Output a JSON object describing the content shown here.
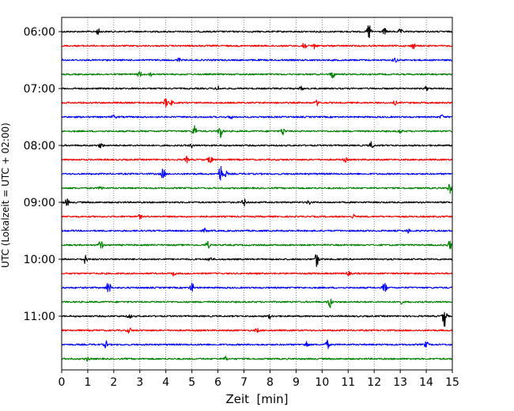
{
  "chart_data": {
    "type": "line",
    "chart_kind": "helicorder",
    "xlabel": "Zeit  [min]",
    "ylabel": "UTC (Lokalzeit = UTC + 02:00)",
    "xlim": [
      0,
      15
    ],
    "x_ticks": [
      "0",
      "1",
      "2",
      "3",
      "4",
      "5",
      "6",
      "7",
      "8",
      "9",
      "10",
      "11",
      "12",
      "13",
      "14",
      "15"
    ],
    "y_ticks": [
      "06:00",
      "07:00",
      "08:00",
      "09:00",
      "10:00",
      "11:00"
    ],
    "grid": "vertical dotted at each minute",
    "trace_colors": [
      "#000000",
      "#ff0000",
      "#0000ff",
      "#008000"
    ],
    "rows": [
      {
        "start": "06:00",
        "color": "#000000",
        "events": [
          [
            1.4,
            0.6
          ],
          [
            11.8,
            1.8
          ],
          [
            12.4,
            0.6
          ],
          [
            13.0,
            0.5
          ]
        ]
      },
      {
        "start": "06:15",
        "color": "#ff0000",
        "events": [
          [
            9.3,
            1.2
          ],
          [
            9.7,
            0.6
          ],
          [
            13.5,
            0.6
          ]
        ]
      },
      {
        "start": "06:30",
        "color": "#0000ff",
        "events": [
          [
            4.5,
            0.4
          ],
          [
            12.8,
            0.5
          ]
        ]
      },
      {
        "start": "06:45",
        "color": "#008000",
        "events": [
          [
            3.0,
            0.6
          ],
          [
            3.4,
            0.4
          ],
          [
            10.4,
            0.9
          ]
        ]
      },
      {
        "start": "07:00",
        "color": "#000000",
        "events": [
          [
            6.0,
            0.5
          ],
          [
            9.2,
            0.4
          ],
          [
            14.0,
            0.4
          ]
        ]
      },
      {
        "start": "07:15",
        "color": "#ff0000",
        "events": [
          [
            4.0,
            0.9
          ],
          [
            4.2,
            0.5
          ],
          [
            9.8,
            0.5
          ],
          [
            12.8,
            0.4
          ]
        ]
      },
      {
        "start": "07:30",
        "color": "#0000ff",
        "events": [
          [
            2.0,
            0.4
          ],
          [
            6.5,
            0.4
          ],
          [
            14.6,
            0.4
          ]
        ]
      },
      {
        "start": "07:45",
        "color": "#008000",
        "events": [
          [
            5.1,
            1.3
          ],
          [
            6.1,
            1.6
          ],
          [
            8.5,
            0.8
          ],
          [
            13.0,
            0.4
          ]
        ]
      },
      {
        "start": "08:00",
        "color": "#000000",
        "events": [
          [
            1.5,
            0.6
          ],
          [
            5.0,
            0.4
          ],
          [
            11.9,
            0.8
          ]
        ]
      },
      {
        "start": "08:15",
        "color": "#ff0000",
        "events": [
          [
            4.8,
            0.6
          ],
          [
            5.7,
            0.9
          ],
          [
            10.9,
            0.4
          ]
        ]
      },
      {
        "start": "08:30",
        "color": "#0000ff",
        "events": [
          [
            3.9,
            1.2
          ],
          [
            6.1,
            1.8
          ],
          [
            6.3,
            0.6
          ]
        ]
      },
      {
        "start": "08:45",
        "color": "#008000",
        "events": [
          [
            1.5,
            0.4
          ],
          [
            14.9,
            1.1
          ]
        ]
      },
      {
        "start": "09:00",
        "color": "#000000",
        "events": [
          [
            0.2,
            0.8
          ],
          [
            7.0,
            0.7
          ],
          [
            9.5,
            0.4
          ]
        ]
      },
      {
        "start": "09:15",
        "color": "#ff0000",
        "events": [
          [
            3.0,
            0.4
          ],
          [
            11.2,
            0.4
          ]
        ]
      },
      {
        "start": "09:30",
        "color": "#0000ff",
        "events": [
          [
            5.5,
            0.4
          ],
          [
            13.3,
            0.4
          ]
        ]
      },
      {
        "start": "09:45",
        "color": "#008000",
        "events": [
          [
            1.5,
            1.2
          ],
          [
            5.6,
            0.8
          ],
          [
            14.9,
            0.9
          ]
        ]
      },
      {
        "start": "10:00",
        "color": "#000000",
        "events": [
          [
            0.9,
            0.9
          ],
          [
            5.7,
            0.5
          ],
          [
            9.8,
            1.5
          ]
        ]
      },
      {
        "start": "10:15",
        "color": "#ff0000",
        "events": [
          [
            4.3,
            0.4
          ],
          [
            11.0,
            0.4
          ]
        ]
      },
      {
        "start": "10:30",
        "color": "#0000ff",
        "events": [
          [
            1.8,
            1.5
          ],
          [
            5.0,
            1.0
          ],
          [
            12.4,
            1.2
          ]
        ]
      },
      {
        "start": "10:45",
        "color": "#008000",
        "events": [
          [
            10.3,
            1.2
          ],
          [
            13.0,
            0.5
          ]
        ]
      },
      {
        "start": "11:00",
        "color": "#000000",
        "events": [
          [
            2.6,
            0.5
          ],
          [
            8.0,
            0.5
          ],
          [
            14.7,
            2.4
          ]
        ]
      },
      {
        "start": "11:15",
        "color": "#ff0000",
        "events": [
          [
            2.6,
            0.6
          ],
          [
            7.5,
            0.4
          ]
        ]
      },
      {
        "start": "11:30",
        "color": "#0000ff",
        "events": [
          [
            1.7,
            0.7
          ],
          [
            9.4,
            0.7
          ],
          [
            10.2,
            0.9
          ],
          [
            14.0,
            0.6
          ]
        ]
      },
      {
        "start": "11:45",
        "color": "#008000",
        "events": [
          [
            1.0,
            0.4
          ],
          [
            6.3,
            0.4
          ]
        ]
      }
    ]
  }
}
